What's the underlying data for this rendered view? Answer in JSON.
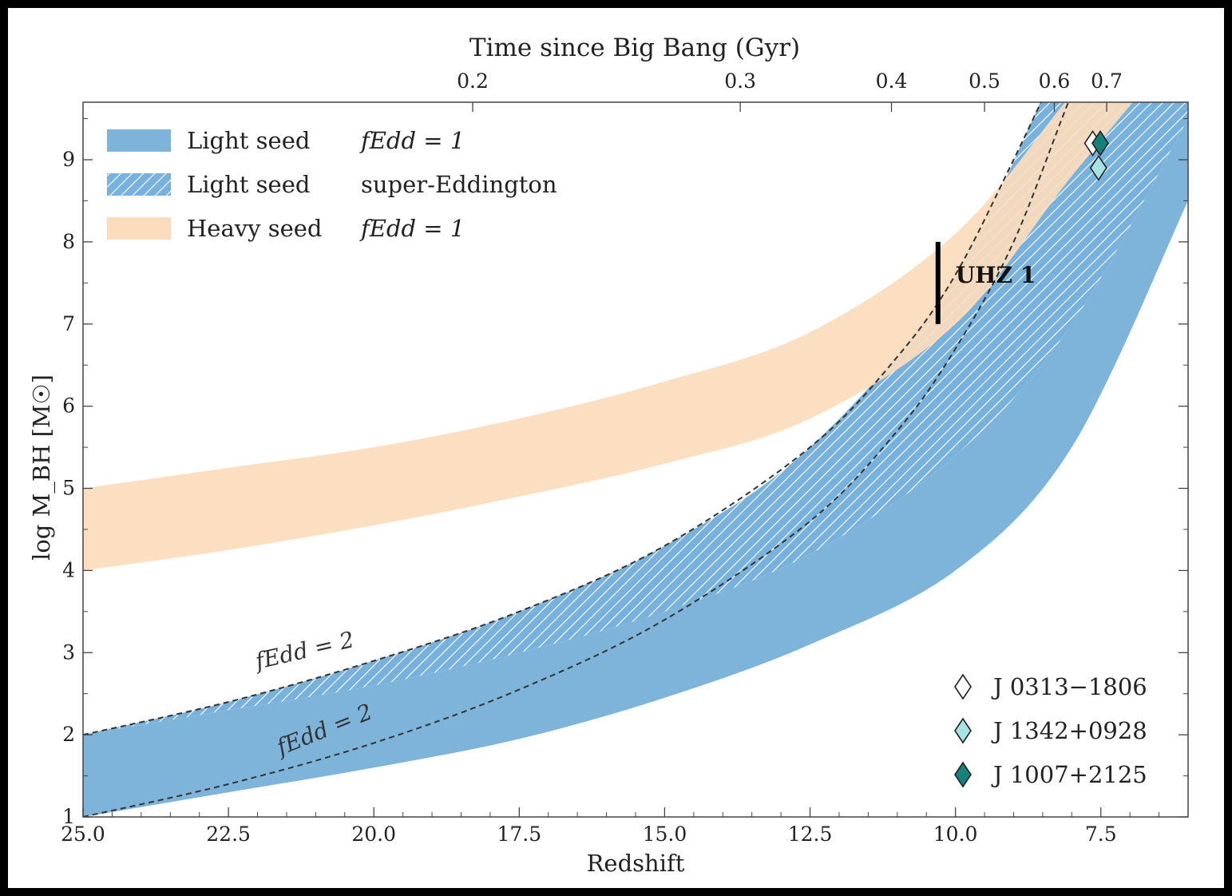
{
  "chart_data": {
    "type": "area",
    "xlabel": "Redshift",
    "ylabel": "log M_BH [M☉]",
    "top_xlabel": "Time since Big Bang (Gyr)",
    "xlim": [
      25.0,
      6.0
    ],
    "ylim": [
      1,
      9.7
    ],
    "x_ticks": [
      "25.0",
      "22.5",
      "20.0",
      "17.5",
      "15.0",
      "12.5",
      "10.0",
      "7.5"
    ],
    "x_tick_values": [
      25.0,
      22.5,
      20.0,
      17.5,
      15.0,
      12.5,
      10.0,
      7.5
    ],
    "y_ticks": [
      "1",
      "2",
      "3",
      "4",
      "5",
      "6",
      "7",
      "8",
      "9"
    ],
    "y_tick_values": [
      1,
      2,
      3,
      4,
      5,
      6,
      7,
      8,
      9
    ],
    "top_ticks": [
      {
        "label": "0.2",
        "z": 18.3
      },
      {
        "label": "0.3",
        "z": 13.7
      },
      {
        "label": "0.4",
        "z": 11.1
      },
      {
        "label": "0.5",
        "z": 9.5
      },
      {
        "label": "0.6",
        "z": 8.3
      },
      {
        "label": "0.7",
        "z": 7.4
      }
    ],
    "grid": false,
    "legend_position": "top-left",
    "legend": [
      {
        "label": "Light seed",
        "desc": "fEdd = 1",
        "fill": "#7fb4da",
        "style": "solid"
      },
      {
        "label": "Light seed",
        "desc": "super-Eddington",
        "fill": "#7fb4da",
        "style": "hatched"
      },
      {
        "label": "Heavy seed",
        "desc": "fEdd = 1",
        "fill": "#fcdcbc",
        "style": "solid"
      }
    ],
    "series": [
      {
        "name": "Light seed fEdd = 1",
        "kind": "band",
        "color": "#7fb4da",
        "x": [
          25,
          22.5,
          20,
          17.5,
          15,
          12.5,
          10,
          8,
          6
        ],
        "lower": [
          1.0,
          1.3,
          1.6,
          1.95,
          2.45,
          3.1,
          4.0,
          5.5,
          8.5
        ],
        "upper": [
          2.0,
          2.3,
          2.6,
          3.0,
          3.5,
          4.2,
          5.4,
          7.0,
          9.5
        ]
      },
      {
        "name": "Light seed super-Eddington",
        "kind": "band",
        "color": "#7fb4da",
        "hatched": true,
        "x": [
          25,
          22.5,
          20,
          17.5,
          15,
          12.5,
          10,
          8,
          6
        ],
        "lower": [
          2.0,
          2.3,
          2.6,
          3.0,
          3.5,
          4.2,
          5.4,
          7.0,
          9.5
        ],
        "upper": [
          2.0,
          2.4,
          2.9,
          3.5,
          4.3,
          5.5,
          7.6,
          10.5,
          13.0
        ]
      },
      {
        "name": "Heavy seed fEdd = 1",
        "kind": "band",
        "color": "#fcdcbc",
        "x": [
          25,
          22.5,
          20,
          17.5,
          15,
          12.5,
          10,
          8,
          6
        ],
        "lower": [
          4.0,
          4.25,
          4.55,
          4.9,
          5.3,
          5.85,
          7.0,
          8.8,
          10.5
        ],
        "upper": [
          5.0,
          5.25,
          5.5,
          5.85,
          6.3,
          6.9,
          8.1,
          9.8,
          11.5
        ]
      },
      {
        "name": "fEdd = 2 (from log M = 2)",
        "kind": "dashed",
        "x": [
          25,
          22.5,
          20,
          17.5,
          15,
          12.5,
          11,
          10,
          9,
          8.2
        ],
        "y": [
          2.0,
          2.4,
          2.9,
          3.5,
          4.3,
          5.5,
          6.6,
          7.6,
          9.0,
          10.2
        ]
      },
      {
        "name": "fEdd = 2 (from log M = 1)",
        "kind": "dashed",
        "x": [
          25,
          22.5,
          20,
          17.5,
          15,
          12.5,
          11,
          10,
          9,
          8,
          7.5
        ],
        "y": [
          1.0,
          1.4,
          1.9,
          2.55,
          3.4,
          4.6,
          5.7,
          6.7,
          8.0,
          9.8,
          10.5
        ]
      }
    ],
    "curve_labels": [
      {
        "text": "fEdd = 2",
        "z": 22.0,
        "logM": 2.8
      },
      {
        "text": "fEdd = 2",
        "z": 21.6,
        "logM": 1.75
      }
    ],
    "uhz1": {
      "label": "UHZ 1",
      "z": 10.3,
      "range": [
        7.0,
        8.0
      ]
    },
    "points": [
      {
        "name": "J 0313−1806",
        "z": 7.64,
        "logM": 9.2,
        "fill": "#ffffff"
      },
      {
        "name": "J 1342+0928",
        "z": 7.54,
        "logM": 8.9,
        "fill": "#a8e3e3"
      },
      {
        "name": "J 1007+2125",
        "z": 7.51,
        "logM": 9.2,
        "fill": "#16807a"
      }
    ]
  }
}
